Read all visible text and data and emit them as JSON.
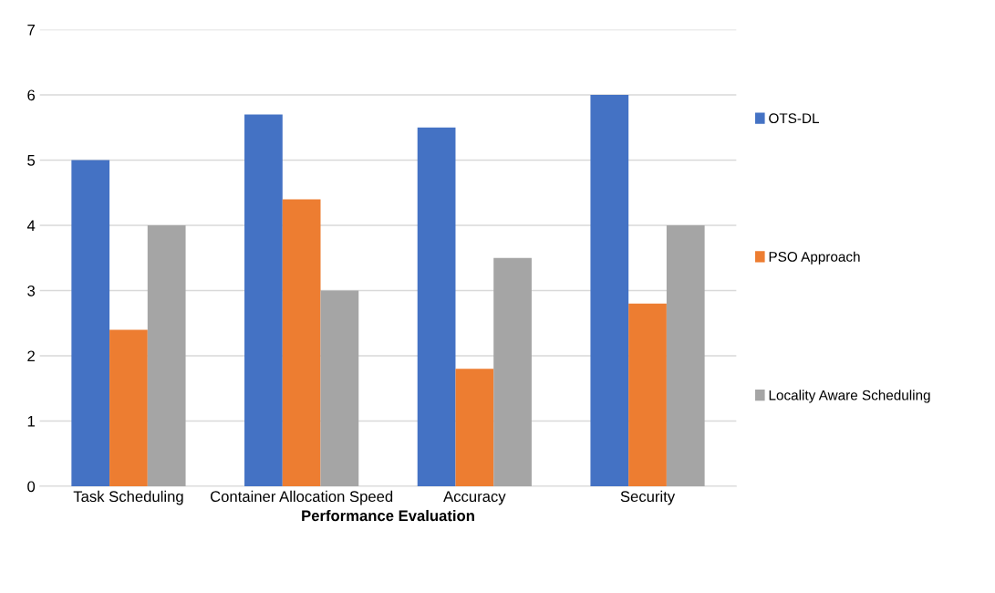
{
  "chart_data": {
    "type": "bar",
    "xlabel": "Performance Evaluation",
    "categories": [
      "Task Scheduling",
      "Container Allocation Speed",
      "Accuracy",
      "Security"
    ],
    "series": [
      {
        "name": "OTS-DL",
        "color": "#4472c4",
        "values": [
          5,
          5.7,
          5.5,
          6
        ]
      },
      {
        "name": "PSO Approach",
        "color": "#ed7d31",
        "values": [
          2.4,
          4.4,
          1.8,
          2.8
        ]
      },
      {
        "name": "Locality Aware Scheduling",
        "color": "#a5a5a5",
        "values": [
          4,
          3,
          3.5,
          4
        ]
      }
    ],
    "ylim": [
      0,
      7
    ],
    "yticks": [
      0,
      1,
      2,
      3,
      4,
      5,
      6,
      7
    ],
    "grid": "y",
    "legend": "right"
  }
}
